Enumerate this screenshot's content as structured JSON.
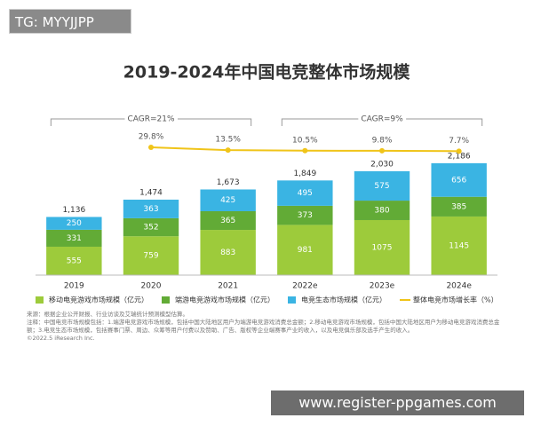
{
  "overlay": {
    "tag": "TG: MYYJJPP",
    "url": "www.register-ppgames.com"
  },
  "chart_data": {
    "type": "bar",
    "stacked": true,
    "title": "2019-2024年中国电竞整体市场规模",
    "categories": [
      "2019",
      "2020",
      "2021",
      "2022e",
      "2023e",
      "2024e"
    ],
    "series": [
      {
        "name": "移动电竞游戏市场规模（亿元）",
        "color": "#9dcb3b",
        "values": [
          555,
          759,
          883,
          981,
          1075,
          1145
        ]
      },
      {
        "name": "端游电竞游戏市场规模（亿元）",
        "color": "#62ab36",
        "values": [
          331,
          352,
          365,
          373,
          380,
          385
        ]
      },
      {
        "name": "电竞生态市场规模（亿元）",
        "color": "#3ab4e3",
        "values": [
          250,
          363,
          425,
          495,
          575,
          656
        ]
      },
      {
        "name": "整体电竞市场增长率（%）",
        "color": "#f0c419",
        "type": "line",
        "axis": "y2",
        "values": [
          null,
          29.8,
          13.5,
          10.5,
          9.8,
          7.7
        ],
        "value_labels": [
          null,
          "29.8%",
          "13.5%",
          "10.5%",
          "9.8%",
          "7.7%"
        ]
      }
    ],
    "totals": {
      "values": [
        1136,
        1474,
        1673,
        1849,
        2030,
        2186
      ],
      "value_labels": [
        "1,136",
        "1,474",
        "1,673",
        "1,849",
        "2,030",
        "2,186"
      ]
    },
    "annotations": [
      {
        "text": "CAGR=21%",
        "from": 0,
        "to": 2
      },
      {
        "text": "CAGR=9%",
        "from": 3,
        "to": 5
      }
    ],
    "ylim": [
      0,
      2600
    ],
    "y2lim": [
      -700,
      60
    ],
    "notes": [
      "来源：根据企业公开财报、行业访谈及艾瑞统计预测模型估算。",
      "注释：中国电竞市场规模包括：1.端游电竞游戏市场规模，包括中国大陆地区用户为端游电竞游戏消费总金额；2.移动电竞游戏市场规模，包括中国大陆地区用户为移动电竞游戏消费总金额；3.电竞生态市场规模，包括赛事门票、周边、众筹等用户付费以及赞助、广告、版权等企业端赛事产业的收入，以及电竞俱乐部及选手产生的收入。",
      "©2022.5 iResearch Inc."
    ]
  }
}
